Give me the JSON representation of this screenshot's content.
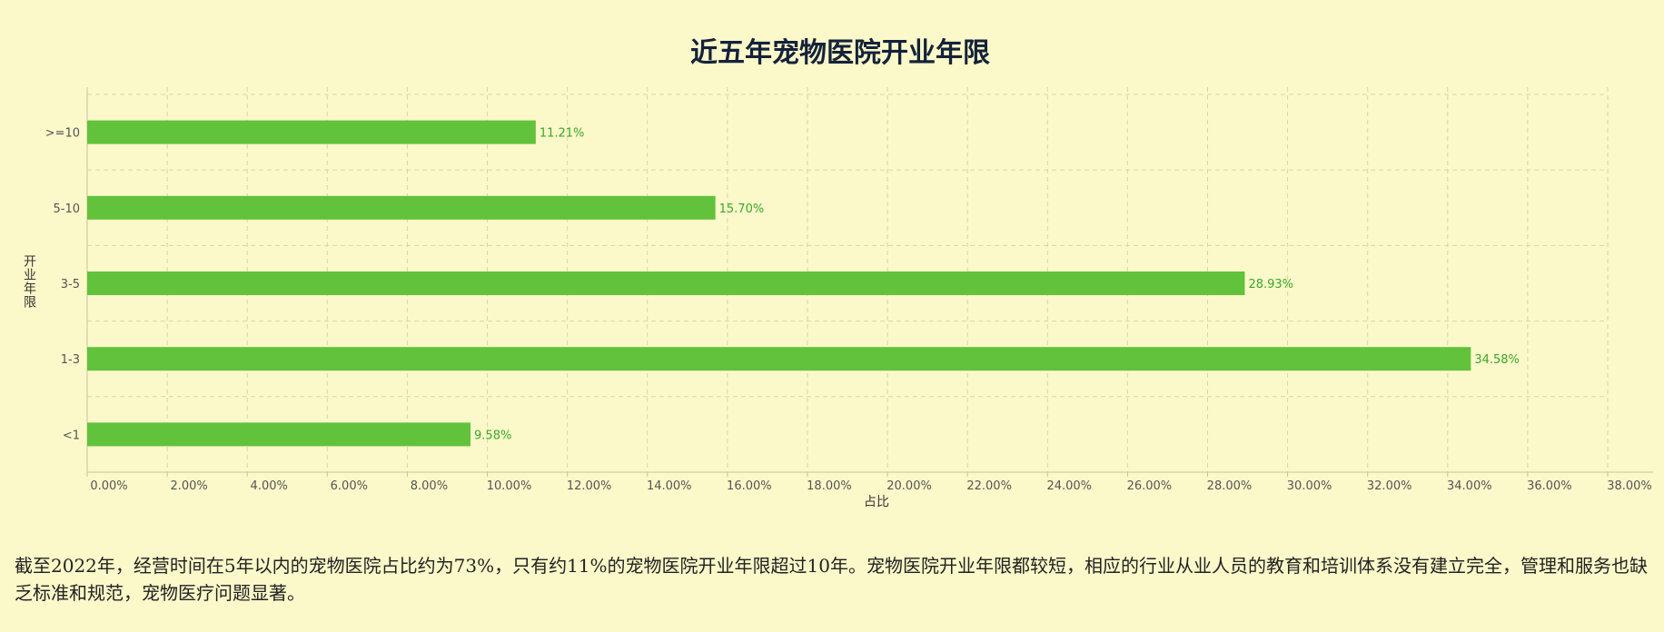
{
  "colors": {
    "background": "#fbf8c9",
    "bar": "#62c23b",
    "data_label": "#3aa82a",
    "title": "#14223a",
    "grid": "#d9d5a8",
    "axis": "#c8c2a0"
  },
  "chart_data": {
    "type": "bar",
    "orientation": "horizontal",
    "title": "近五年宠物医院开业年限",
    "xlabel": "占比",
    "ylabel": "开业年限",
    "categories": [
      "<1",
      "1-3",
      "3-5",
      "5-10",
      ">=10"
    ],
    "values": [
      9.58,
      34.58,
      28.93,
      15.7,
      11.21
    ],
    "value_labels": [
      "9.58%",
      "34.58%",
      "28.93%",
      "15.70%",
      "11.21%"
    ],
    "xlim": [
      0,
      38
    ],
    "x_ticks": [
      0,
      2,
      4,
      6,
      8,
      10,
      12,
      14,
      16,
      18,
      20,
      22,
      24,
      26,
      28,
      30,
      32,
      34,
      36,
      38
    ],
    "x_tick_labels": [
      "0.00%",
      "2.00%",
      "4.00%",
      "6.00%",
      "8.00%",
      "10.00%",
      "12.00%",
      "14.00%",
      "16.00%",
      "18.00%",
      "20.00%",
      "22.00%",
      "24.00%",
      "26.00%",
      "28.00%",
      "30.00%",
      "32.00%",
      "34.00%",
      "36.00%",
      "38.00%"
    ],
    "grid": true,
    "legend": "none"
  },
  "description": "截至2022年，经营时间在5年以内的宠物医院占比约为73%，只有约11%的宠物医院开业年限超过10年。宠物医院开业年限都较短，相应的行业从业人员的教育和培训体系没有建立完全，管理和服务也缺乏标准和规范，宠物医疗问题显著。"
}
